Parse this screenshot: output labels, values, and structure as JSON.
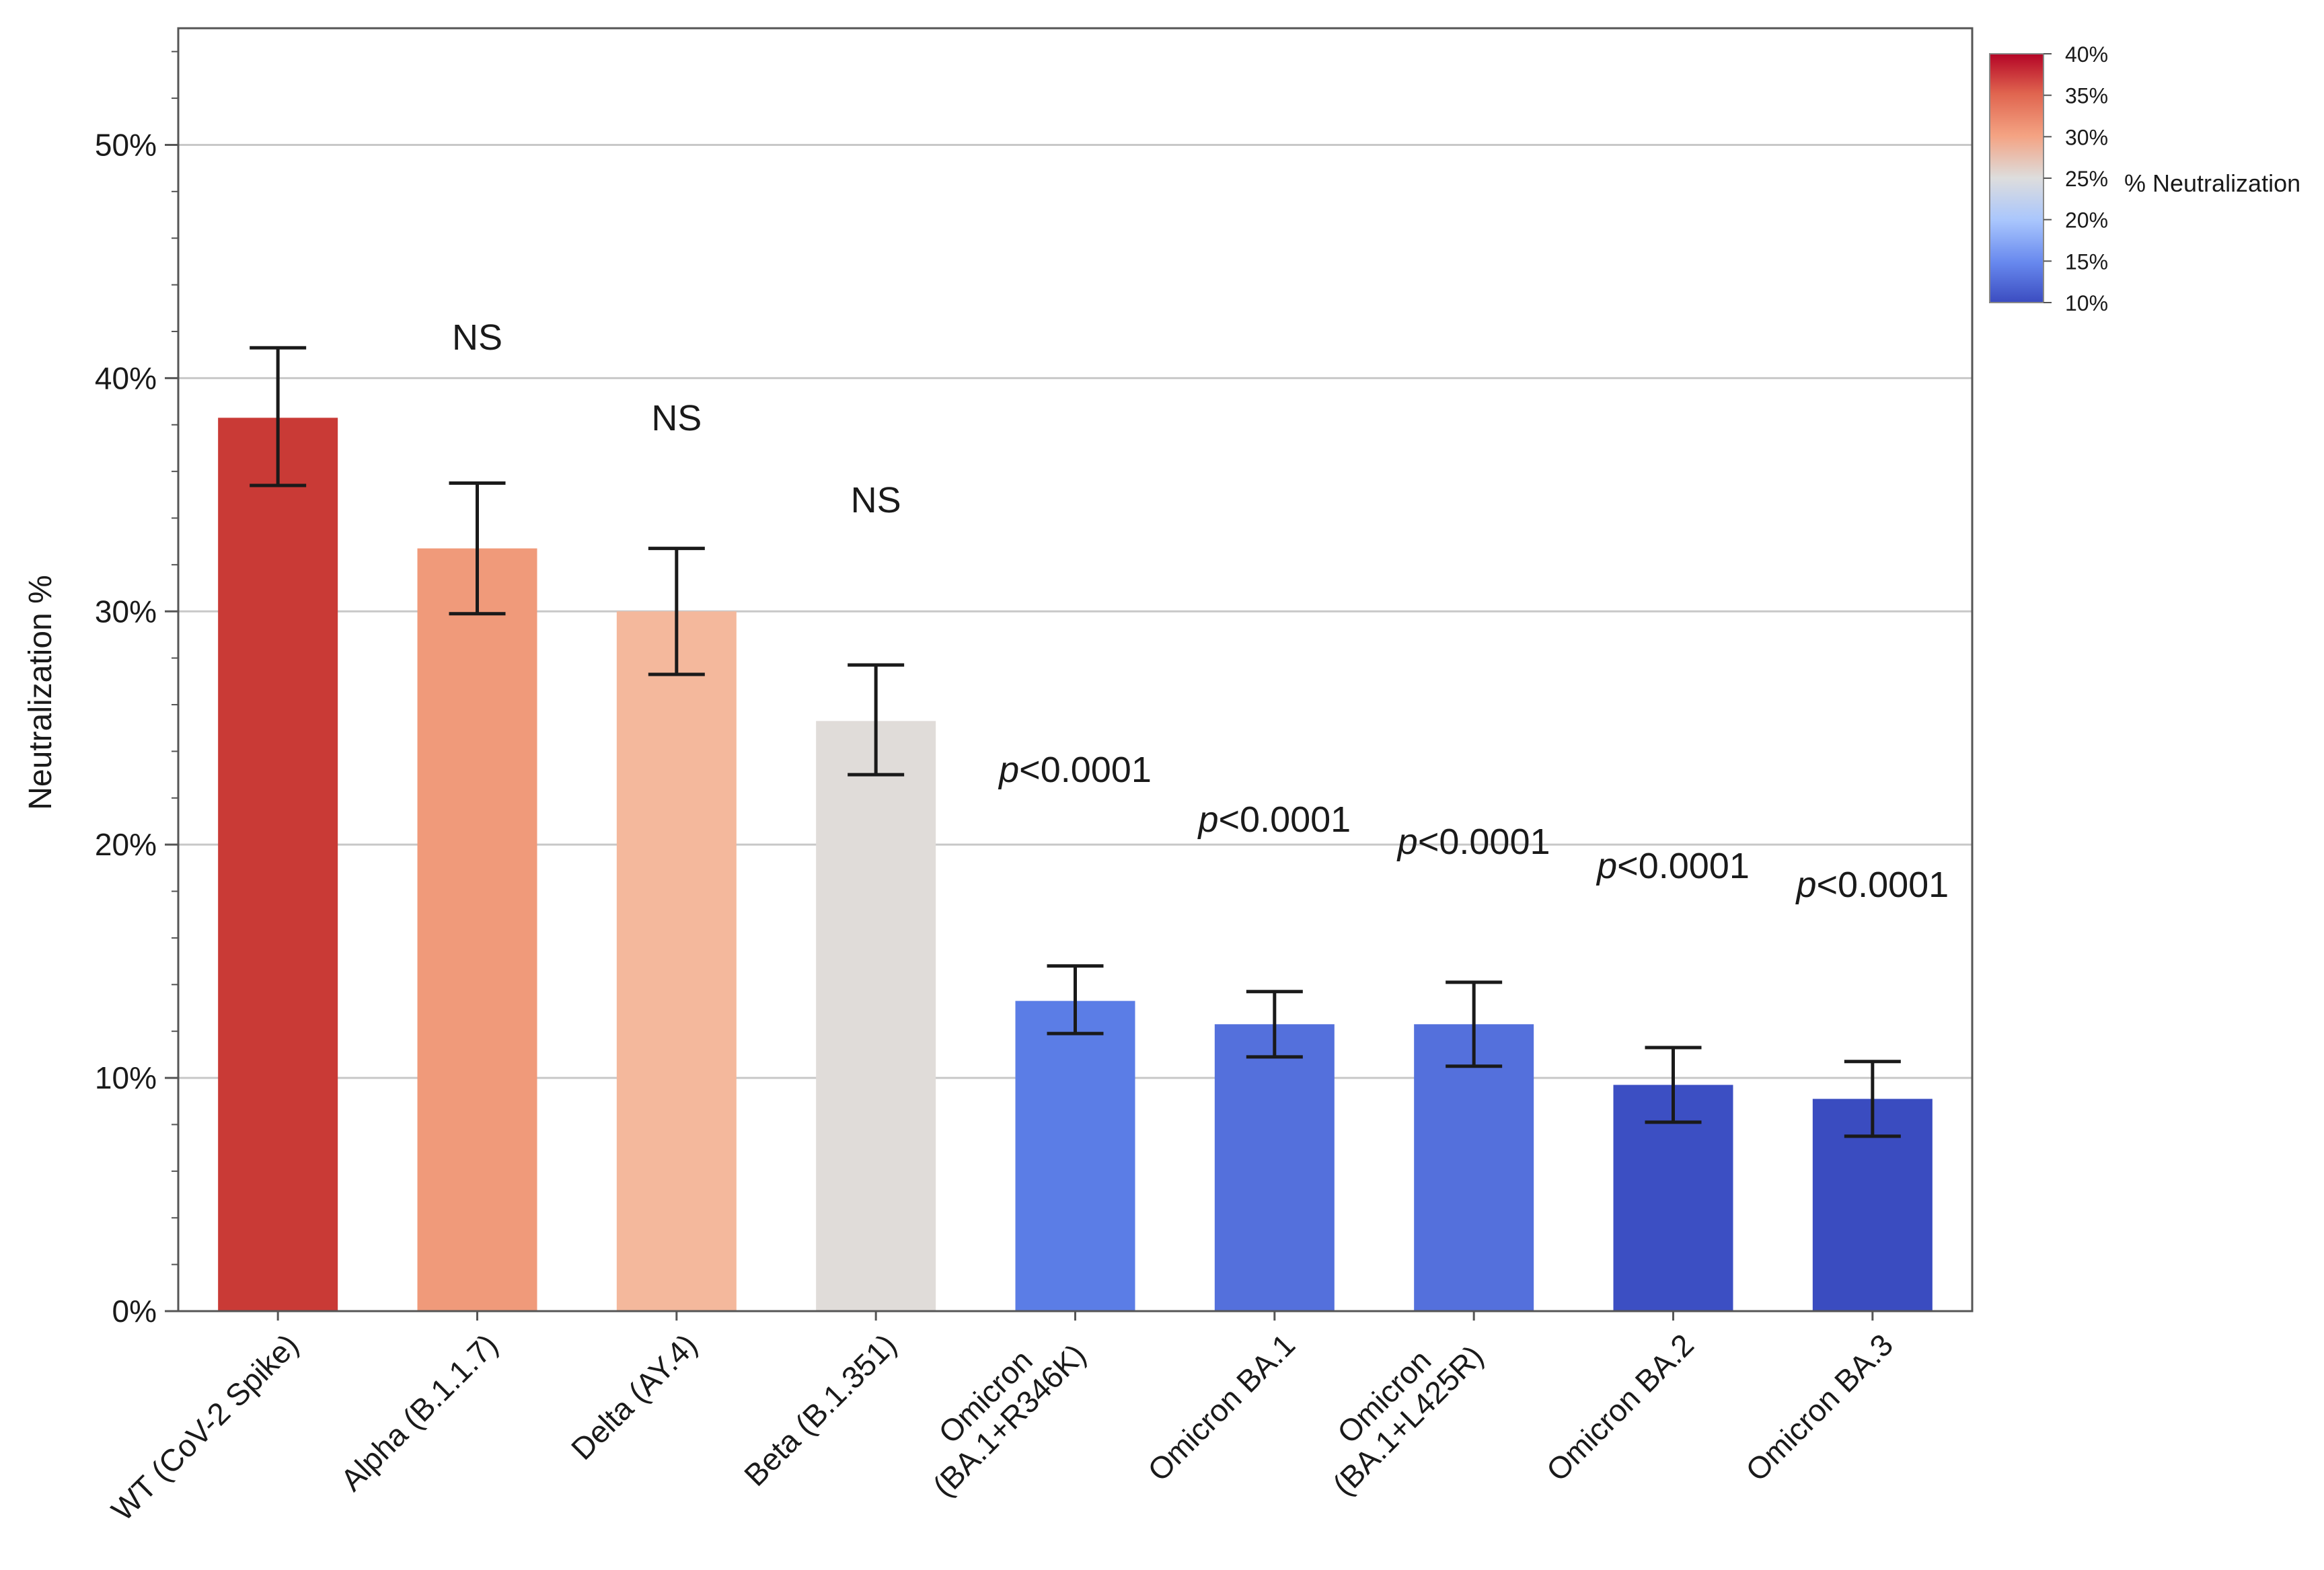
{
  "chart_data": {
    "type": "bar",
    "title": "",
    "xlabel": "",
    "ylabel": "Neutralization %",
    "ylim": [
      0,
      55
    ],
    "yticks": [
      0,
      10,
      20,
      30,
      40,
      50
    ],
    "ytick_labels": [
      "0%",
      "10%",
      "20%",
      "30%",
      "40%",
      "50%"
    ],
    "grid": true,
    "categories": [
      [
        "WT (CoV-2 Spike)"
      ],
      [
        "Alpha (B.1.1.7)"
      ],
      [
        "Delta (AY.4)"
      ],
      [
        "Beta (B.1.351)"
      ],
      [
        "Omicron",
        "(BA.1+R346K)"
      ],
      [
        "Omicron BA.1"
      ],
      [
        "Omicron",
        "(BA.1+L425R)"
      ],
      [
        "Omicron BA.2"
      ],
      [
        "Omicron BA.3"
      ]
    ],
    "values": [
      38.3,
      32.7,
      30.0,
      25.3,
      13.3,
      12.3,
      12.3,
      9.7,
      9.1
    ],
    "error_low": [
      35.4,
      29.9,
      27.3,
      23.0,
      11.9,
      10.9,
      10.5,
      8.1,
      7.5
    ],
    "error_high": [
      41.3,
      35.5,
      32.7,
      27.7,
      14.8,
      13.7,
      14.1,
      11.3,
      10.7
    ],
    "bar_colors": [
      "#c93a36",
      "#f09a7a",
      "#f4b89c",
      "#e0dcd9",
      "#5b7de6",
      "#5470dc",
      "#5470dc",
      "#3c4fc3",
      "#3a4cc0"
    ],
    "annotations": [
      {
        "prefix": "",
        "text": "NS"
      },
      {
        "prefix": "",
        "text": "NS"
      },
      {
        "prefix": "",
        "text": "NS"
      },
      {
        "prefix": "p",
        "text": "<0.0001"
      },
      {
        "prefix": "p",
        "text": "<0.0001"
      },
      {
        "prefix": "p",
        "text": "<0.0001"
      },
      {
        "prefix": "p",
        "text": "<0.0001"
      },
      {
        "prefix": "p",
        "text": "<0.0001"
      }
    ],
    "colorbar": {
      "title": "% Neutralization",
      "range": [
        10,
        40
      ],
      "ticks": [
        "40%",
        "35%",
        "30%",
        "25%",
        "20%",
        "15%",
        "10%"
      ],
      "colors": [
        "#b40426",
        "#e0654f",
        "#f4a383",
        "#dddddd",
        "#a9c6fd",
        "#6788ee",
        "#3b4cc0"
      ]
    }
  }
}
